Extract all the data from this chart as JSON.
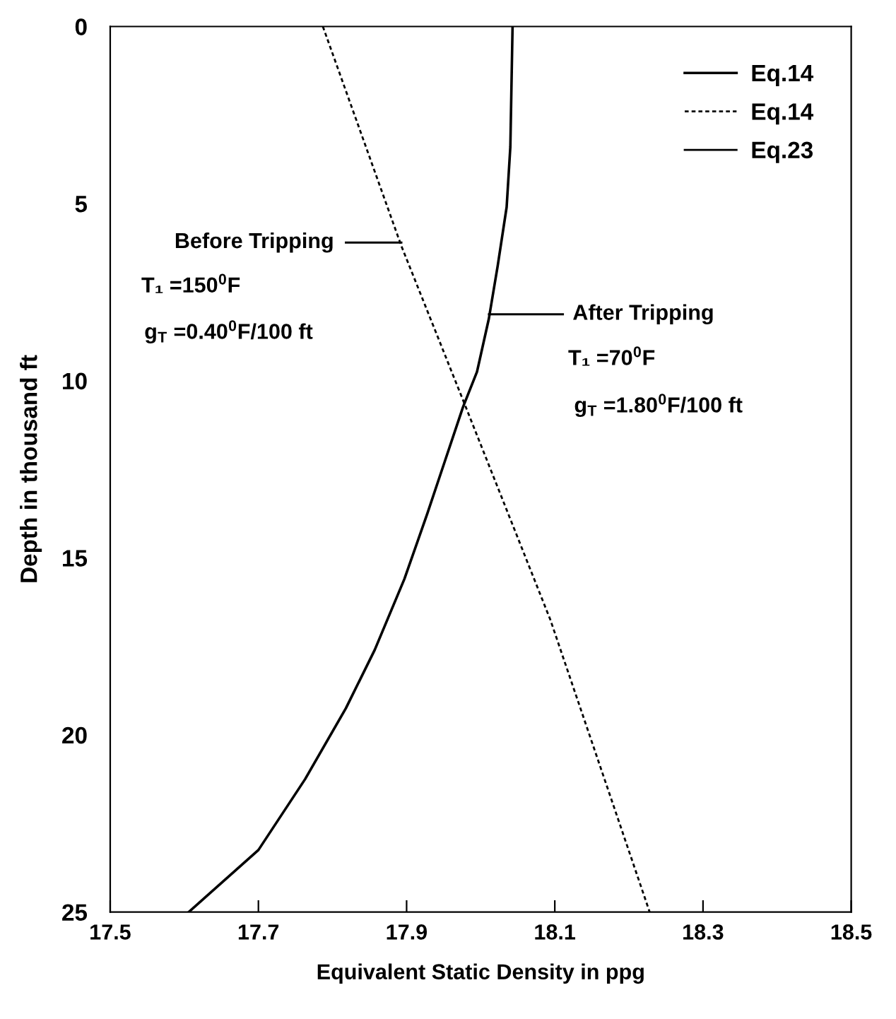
{
  "chart_data": {
    "type": "line",
    "xlabel": "Equivalent Static Density in ppg",
    "ylabel": "Depth in thousand ft",
    "xlim": [
      17.5,
      18.5
    ],
    "xticks": [
      17.5,
      17.7,
      17.9,
      18.1,
      18.3,
      18.5
    ],
    "ylim": [
      25,
      0
    ],
    "yticks": [
      0,
      5,
      10,
      15,
      20,
      25
    ],
    "grid": false,
    "legend": "top right",
    "marker": "none",
    "series": [
      {
        "name": "Eq.14",
        "color": "#000000",
        "line_style": "solid",
        "x": [
          18.043,
          18.04,
          18.035,
          18.023,
          18.011,
          17.995,
          17.976,
          17.952,
          17.928,
          17.897,
          17.857,
          17.818,
          17.763,
          17.7,
          17.606
        ],
        "values": [
          0,
          3.4,
          5.1,
          6.75,
          8.25,
          9.75,
          10.75,
          12.25,
          13.75,
          15.6,
          17.6,
          19.25,
          21.25,
          23.25,
          25
        ]
      },
      {
        "name": "Eq.14",
        "color": "#000000",
        "line_style": "dotted",
        "x": [
          17.787,
          17.893,
          17.98,
          18.094,
          18.228
        ],
        "values": [
          0,
          6.2,
          10.75,
          16.75,
          25
        ]
      },
      {
        "name": "Eq.23",
        "color": "#000000",
        "line_style": "solid"
      }
    ],
    "annotations": [
      "Before Tripping",
      "T₁ =150$^{0}$F",
      "g$_{T}$ =0.40$^{0}$F/100 ft",
      "After Tripping",
      "T₁ =70$^{0}$F",
      "g$_{T}$ =1.80$^{0}$F/100 ft"
    ]
  }
}
